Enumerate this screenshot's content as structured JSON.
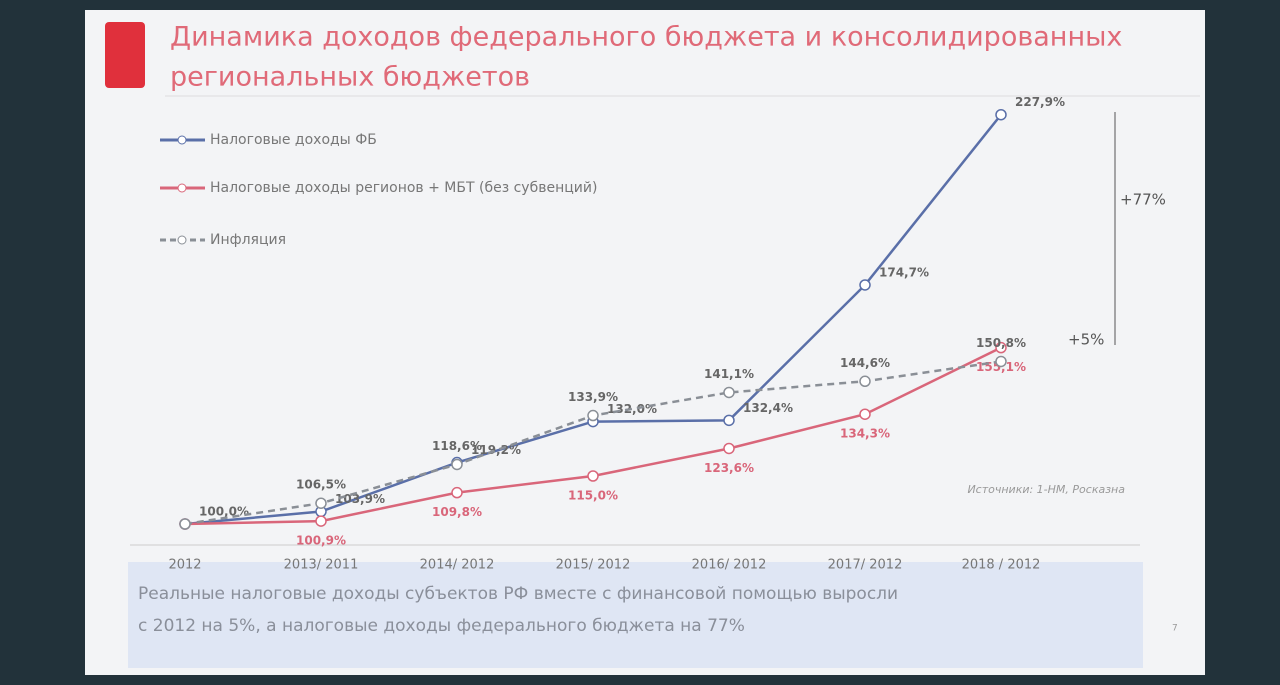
{
  "chart_data": {
    "type": "line",
    "title": "Динамика доходов федерального бюджета и консолидированных",
    "subtitle": "региональных бюджетов",
    "categories": [
      "2012",
      "2013/ 2011",
      "2014/ 2012",
      "2015/ 2012",
      "2016/ 2012",
      "2017/ 2012",
      "2018 / 2012"
    ],
    "series": [
      {
        "name": "Налоговые доходы ФБ",
        "color": "#5a6fa8",
        "dashed": false,
        "values": [
          100.0,
          103.9,
          119.2,
          132.0,
          132.4,
          174.7,
          227.9
        ],
        "value_labels": [
          "100,0%",
          "103,9%",
          "119,2%",
          "132,0%",
          "132,4%",
          "174,7%",
          "227,9%"
        ]
      },
      {
        "name": "Налоговые доходы регионов + МБТ (без субвенций)",
        "color": "#d9667a",
        "dashed": false,
        "values": [
          100.0,
          100.9,
          109.8,
          115.0,
          123.6,
          134.3,
          155.1
        ],
        "value_labels": [
          null,
          "100,9%",
          "109,8%",
          "115,0%",
          "123,6%",
          "134,3%",
          "155,1%"
        ]
      },
      {
        "name": "Инфляция",
        "color": "#8a8f96",
        "dashed": true,
        "values": [
          100.0,
          106.5,
          118.6,
          133.9,
          141.1,
          144.6,
          150.8
        ],
        "value_labels": [
          null,
          "106,5%",
          "118,6%",
          "133,9%",
          "141,1%",
          "144,6%",
          "150,8%"
        ]
      }
    ],
    "ylim": [
      90,
      235
    ],
    "annotations": [
      "+77%",
      "+5%"
    ],
    "source": "Источники: 1-НМ, Росказна",
    "footer": [
      "Реальные налоговые доходы субъектов РФ вместе с финансовой помощью выросли",
      "с 2012 на 5%, а налоговые доходы федерального бюджета на 77%"
    ],
    "page_number": "7"
  }
}
